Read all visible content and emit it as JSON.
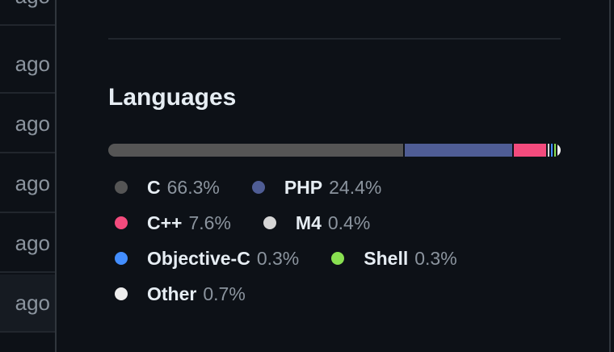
{
  "left_panel": {
    "rows": [
      "ago",
      "ago",
      "ago",
      "ago",
      "ago",
      "ago"
    ]
  },
  "languages": {
    "title": "Languages",
    "items": [
      {
        "name": "C",
        "percent": "66.3%",
        "value": 66.3,
        "color": "#555555"
      },
      {
        "name": "PHP",
        "percent": "24.4%",
        "value": 24.4,
        "color": "#4F5D95"
      },
      {
        "name": "C++",
        "percent": "7.6%",
        "value": 7.6,
        "color": "#f34b7d"
      },
      {
        "name": "M4",
        "percent": "0.4%",
        "value": 0.4,
        "color": "#d6d6d6"
      },
      {
        "name": "Objective-C",
        "percent": "0.3%",
        "value": 0.3,
        "color": "#438eff"
      },
      {
        "name": "Shell",
        "percent": "0.3%",
        "value": 0.3,
        "color": "#89e051"
      },
      {
        "name": "Other",
        "percent": "0.7%",
        "value": 0.7,
        "color": "#ededed"
      }
    ]
  }
}
